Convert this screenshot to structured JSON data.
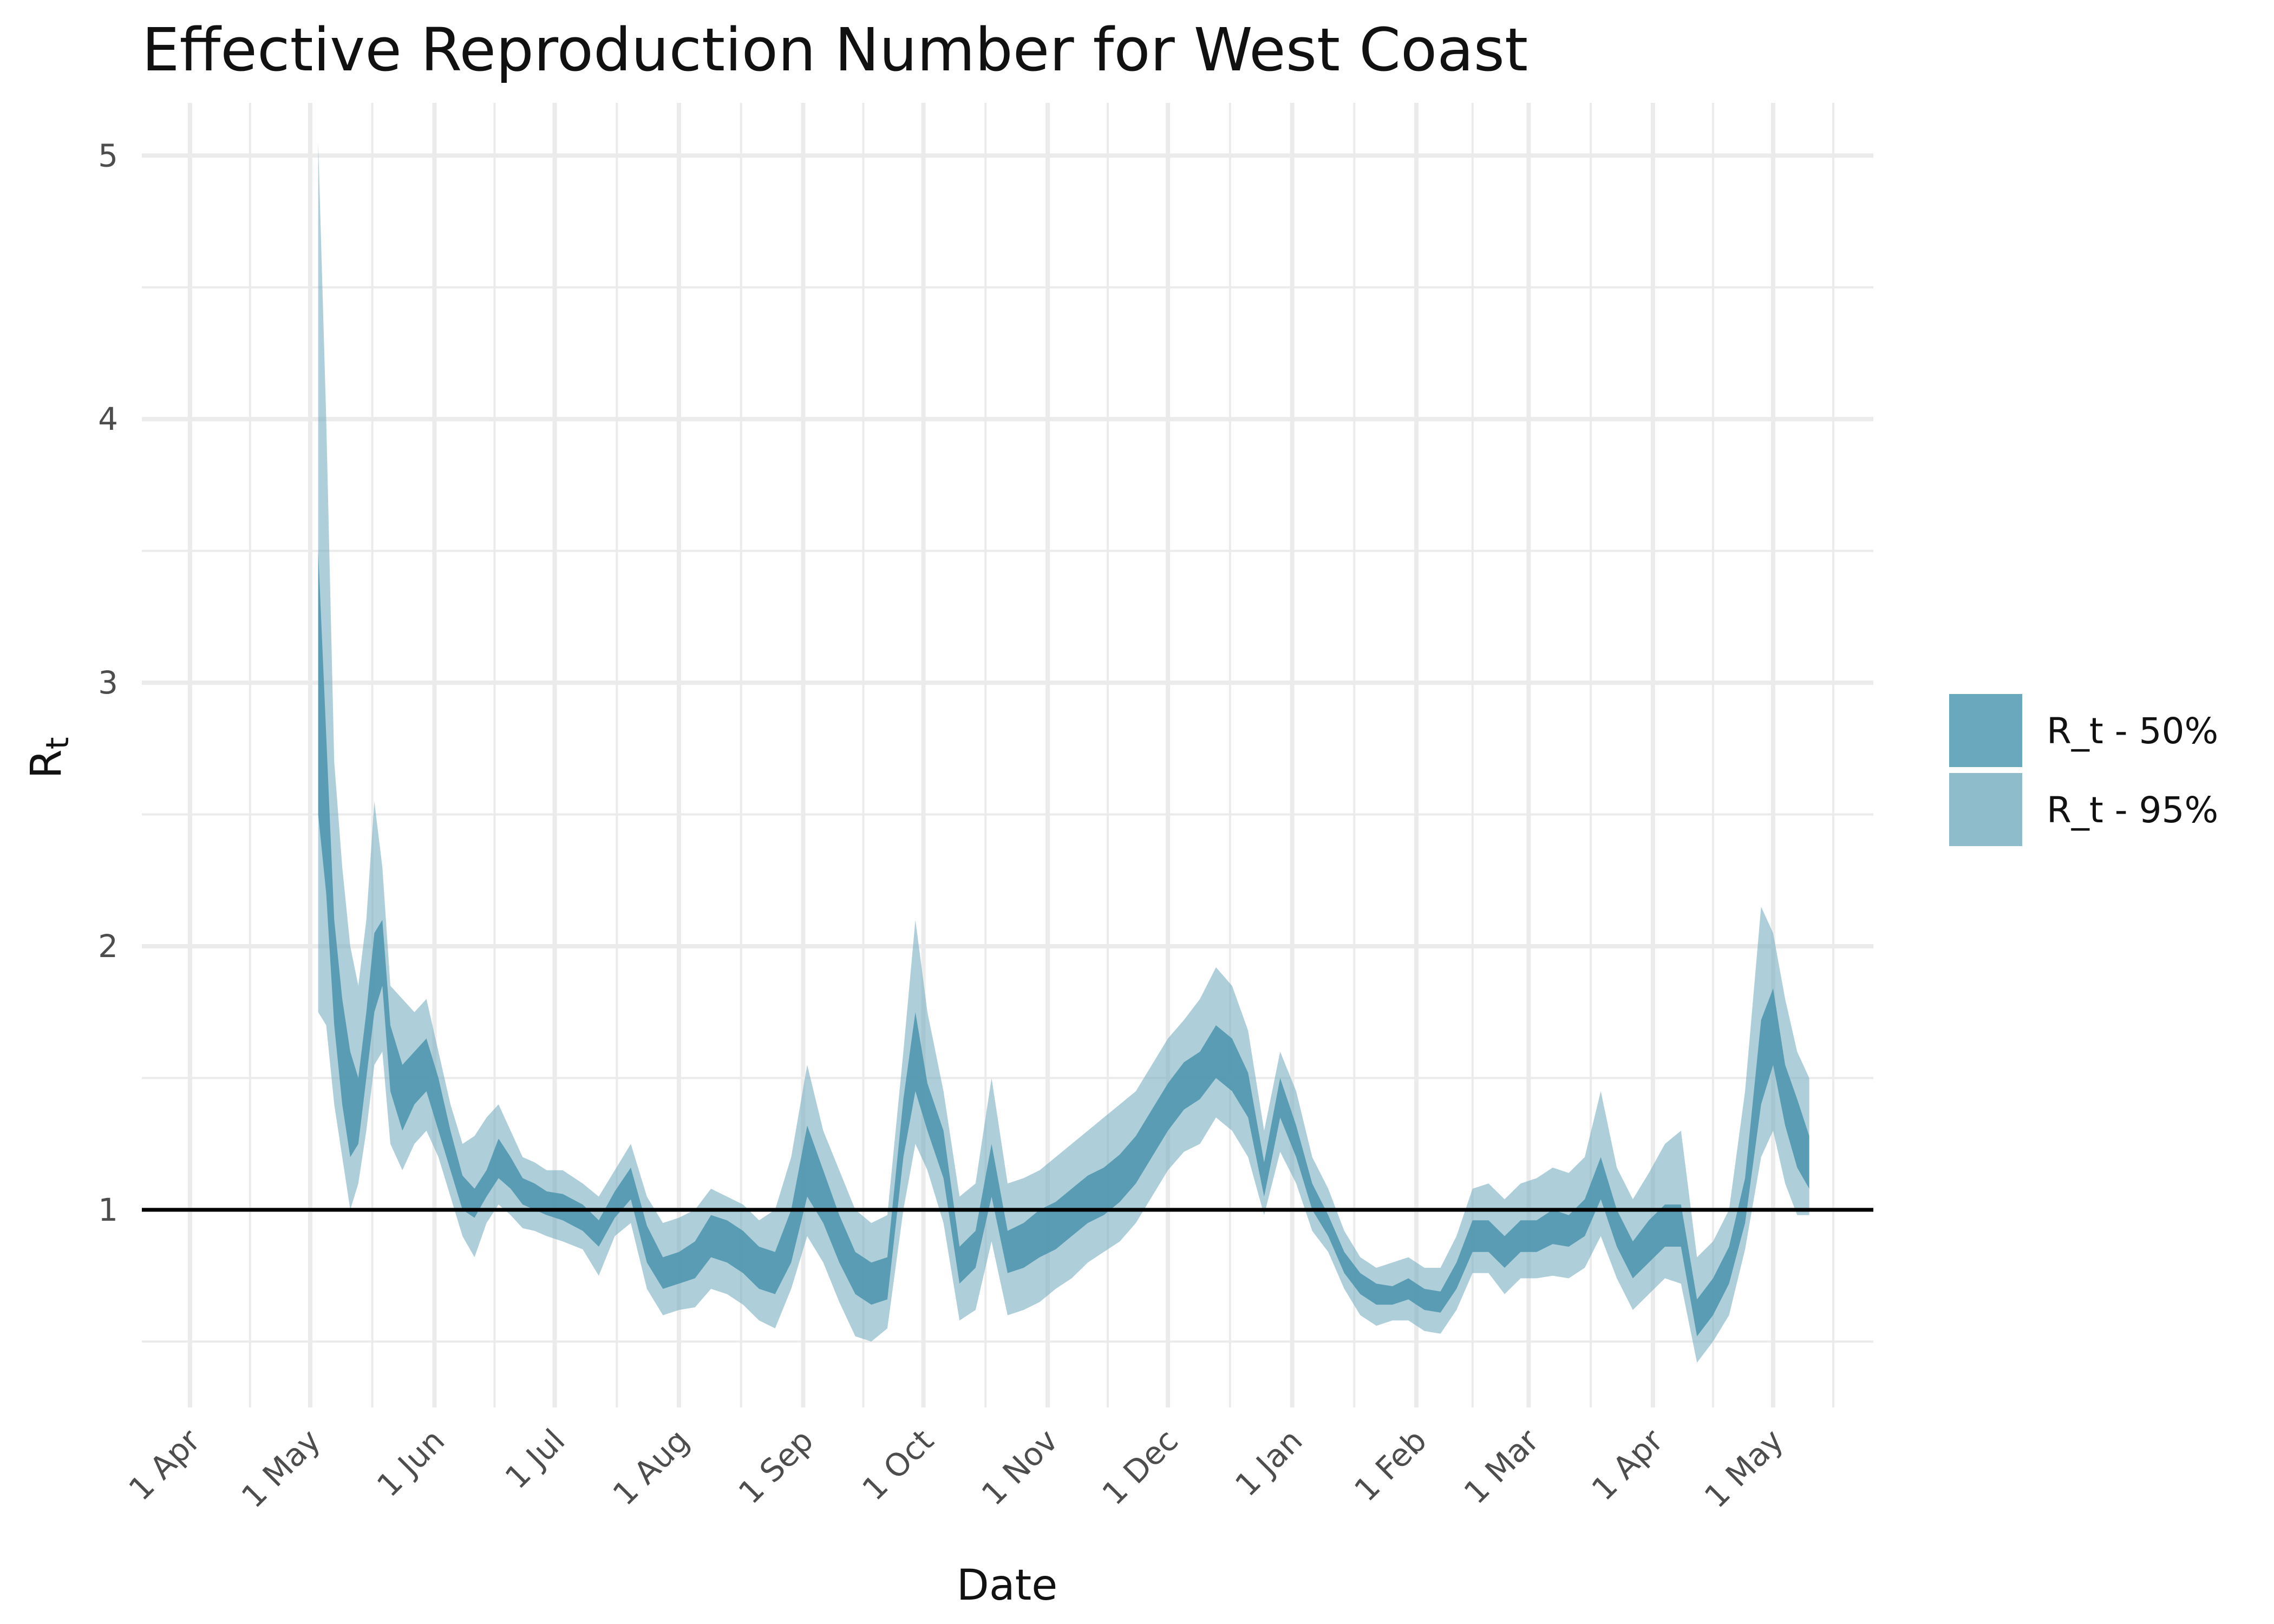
{
  "chart_data": {
    "type": "area",
    "title": "Effective Reproduction Number for West Coast",
    "xlabel": "Date",
    "ylabel": "R",
    "ylabel_subscript": "t",
    "x_range": [
      "2020-03-20",
      "2021-05-26"
    ],
    "ylim": [
      0.25,
      5.2
    ],
    "y_ticks": [
      1,
      2,
      3,
      4,
      5
    ],
    "x_tick_labels": [
      "1 Apr",
      "1 May",
      "1 Jun",
      "1 Jul",
      "1 Aug",
      "1 Sep",
      "1 Oct",
      "1 Nov",
      "1 Dec",
      "1 Jan",
      "1 Feb",
      "1 Mar",
      "1 Apr",
      "1 May"
    ],
    "x_tick_dates": [
      "2020-04-01",
      "2020-05-01",
      "2020-06-01",
      "2020-07-01",
      "2020-08-01",
      "2020-09-01",
      "2020-10-01",
      "2020-11-01",
      "2020-12-01",
      "2021-01-01",
      "2021-02-01",
      "2021-03-01",
      "2021-04-01",
      "2021-05-01"
    ],
    "reference_line": 1,
    "grid": true,
    "legend_position": "right",
    "colors": {
      "band50": "#4a93ad",
      "band95": "#7db2c4",
      "reference": "#000000",
      "grid": "#ebebeb"
    },
    "legend": [
      {
        "label": "R_t - 50%",
        "color": "#6aa8bd"
      },
      {
        "label": "R_t - 95%",
        "color": "#8fbccb"
      }
    ],
    "series": [
      {
        "name": "R_t - 50%",
        "x": [
          "2020-05-03",
          "2020-05-05",
          "2020-05-07",
          "2020-05-09",
          "2020-05-11",
          "2020-05-13",
          "2020-05-15",
          "2020-05-17",
          "2020-05-19",
          "2020-05-21",
          "2020-05-24",
          "2020-05-27",
          "2020-05-30",
          "2020-06-02",
          "2020-06-05",
          "2020-06-08",
          "2020-06-11",
          "2020-06-14",
          "2020-06-17",
          "2020-06-20",
          "2020-06-23",
          "2020-06-26",
          "2020-06-29",
          "2020-07-03",
          "2020-07-08",
          "2020-07-12",
          "2020-07-16",
          "2020-07-20",
          "2020-07-24",
          "2020-07-28",
          "2020-08-01",
          "2020-08-05",
          "2020-08-09",
          "2020-08-13",
          "2020-08-17",
          "2020-08-21",
          "2020-08-25",
          "2020-08-29",
          "2020-09-02",
          "2020-09-06",
          "2020-09-10",
          "2020-09-14",
          "2020-09-18",
          "2020-09-22",
          "2020-09-26",
          "2020-09-29",
          "2020-10-02",
          "2020-10-06",
          "2020-10-10",
          "2020-10-14",
          "2020-10-18",
          "2020-10-22",
          "2020-10-26",
          "2020-10-30",
          "2020-11-03",
          "2020-11-07",
          "2020-11-11",
          "2020-11-15",
          "2020-11-19",
          "2020-11-23",
          "2020-11-27",
          "2020-12-01",
          "2020-12-05",
          "2020-12-09",
          "2020-12-13",
          "2020-12-17",
          "2020-12-21",
          "2020-12-25",
          "2020-12-29",
          "2021-01-02",
          "2021-01-06",
          "2021-01-10",
          "2021-01-14",
          "2021-01-18",
          "2021-01-22",
          "2021-01-26",
          "2021-01-30",
          "2021-02-03",
          "2021-02-07",
          "2021-02-11",
          "2021-02-15",
          "2021-02-19",
          "2021-02-23",
          "2021-02-27",
          "2021-03-03",
          "2021-03-07",
          "2021-03-11",
          "2021-03-15",
          "2021-03-19",
          "2021-03-23",
          "2021-03-27",
          "2021-03-31",
          "2021-04-04",
          "2021-04-08",
          "2021-04-12",
          "2021-04-16",
          "2021-04-20",
          "2021-04-24",
          "2021-04-28",
          "2021-05-01",
          "2021-05-04",
          "2021-05-07",
          "2021-05-10"
        ],
        "lo": [
          2.5,
          2.2,
          1.7,
          1.4,
          1.2,
          1.25,
          1.5,
          1.75,
          1.85,
          1.45,
          1.3,
          1.4,
          1.45,
          1.3,
          1.15,
          1.0,
          0.97,
          1.05,
          1.12,
          1.08,
          1.02,
          1.0,
          0.98,
          0.96,
          0.92,
          0.86,
          0.97,
          1.04,
          0.8,
          0.7,
          0.72,
          0.74,
          0.82,
          0.8,
          0.76,
          0.7,
          0.68,
          0.8,
          1.05,
          0.95,
          0.8,
          0.68,
          0.64,
          0.66,
          1.2,
          1.45,
          1.3,
          1.12,
          0.72,
          0.78,
          1.05,
          0.76,
          0.78,
          0.82,
          0.85,
          0.9,
          0.95,
          0.98,
          1.03,
          1.1,
          1.2,
          1.3,
          1.38,
          1.42,
          1.5,
          1.45,
          1.35,
          1.05,
          1.35,
          1.2,
          1.0,
          0.9,
          0.76,
          0.68,
          0.64,
          0.64,
          0.66,
          0.62,
          0.61,
          0.7,
          0.84,
          0.84,
          0.78,
          0.84,
          0.84,
          0.87,
          0.86,
          0.9,
          1.04,
          0.86,
          0.74,
          0.8,
          0.86,
          0.86,
          0.52,
          0.6,
          0.72,
          0.95,
          1.4,
          1.55,
          1.32,
          1.16,
          1.08
        ],
        "hi": [
          3.5,
          2.8,
          2.1,
          1.8,
          1.6,
          1.5,
          1.75,
          2.05,
          2.1,
          1.7,
          1.55,
          1.6,
          1.65,
          1.5,
          1.3,
          1.13,
          1.08,
          1.15,
          1.27,
          1.2,
          1.12,
          1.1,
          1.07,
          1.06,
          1.02,
          0.96,
          1.07,
          1.16,
          0.94,
          0.82,
          0.84,
          0.88,
          0.98,
          0.96,
          0.92,
          0.86,
          0.84,
          1.0,
          1.32,
          1.15,
          0.98,
          0.84,
          0.8,
          0.82,
          1.42,
          1.75,
          1.48,
          1.3,
          0.86,
          0.92,
          1.25,
          0.92,
          0.95,
          1.0,
          1.03,
          1.08,
          1.13,
          1.16,
          1.21,
          1.28,
          1.38,
          1.48,
          1.56,
          1.6,
          1.7,
          1.65,
          1.52,
          1.18,
          1.5,
          1.32,
          1.1,
          0.98,
          0.84,
          0.76,
          0.72,
          0.71,
          0.74,
          0.7,
          0.69,
          0.8,
          0.96,
          0.96,
          0.9,
          0.96,
          0.96,
          1.0,
          0.98,
          1.04,
          1.2,
          1.0,
          0.88,
          0.96,
          1.02,
          1.02,
          0.66,
          0.74,
          0.86,
          1.12,
          1.72,
          1.84,
          1.55,
          1.42,
          1.28
        ]
      },
      {
        "name": "R_t - 95%",
        "x": [
          "2020-05-03",
          "2020-05-05",
          "2020-05-07",
          "2020-05-09",
          "2020-05-11",
          "2020-05-13",
          "2020-05-15",
          "2020-05-17",
          "2020-05-19",
          "2020-05-21",
          "2020-05-24",
          "2020-05-27",
          "2020-05-30",
          "2020-06-02",
          "2020-06-05",
          "2020-06-08",
          "2020-06-11",
          "2020-06-14",
          "2020-06-17",
          "2020-06-20",
          "2020-06-23",
          "2020-06-26",
          "2020-06-29",
          "2020-07-03",
          "2020-07-08",
          "2020-07-12",
          "2020-07-16",
          "2020-07-20",
          "2020-07-24",
          "2020-07-28",
          "2020-08-01",
          "2020-08-05",
          "2020-08-09",
          "2020-08-13",
          "2020-08-17",
          "2020-08-21",
          "2020-08-25",
          "2020-08-29",
          "2020-09-02",
          "2020-09-06",
          "2020-09-10",
          "2020-09-14",
          "2020-09-18",
          "2020-09-22",
          "2020-09-26",
          "2020-09-29",
          "2020-10-02",
          "2020-10-06",
          "2020-10-10",
          "2020-10-14",
          "2020-10-18",
          "2020-10-22",
          "2020-10-26",
          "2020-10-30",
          "2020-11-03",
          "2020-11-07",
          "2020-11-11",
          "2020-11-15",
          "2020-11-19",
          "2020-11-23",
          "2020-11-27",
          "2020-12-01",
          "2020-12-05",
          "2020-12-09",
          "2020-12-13",
          "2020-12-17",
          "2020-12-21",
          "2020-12-25",
          "2020-12-29",
          "2021-01-02",
          "2021-01-06",
          "2021-01-10",
          "2021-01-14",
          "2021-01-18",
          "2021-01-22",
          "2021-01-26",
          "2021-01-30",
          "2021-02-03",
          "2021-02-07",
          "2021-02-11",
          "2021-02-15",
          "2021-02-19",
          "2021-02-23",
          "2021-02-27",
          "2021-03-03",
          "2021-03-07",
          "2021-03-11",
          "2021-03-15",
          "2021-03-19",
          "2021-03-23",
          "2021-03-27",
          "2021-03-31",
          "2021-04-04",
          "2021-04-08",
          "2021-04-12",
          "2021-04-16",
          "2021-04-20",
          "2021-04-24",
          "2021-04-28",
          "2021-05-01",
          "2021-05-04",
          "2021-05-07",
          "2021-05-10"
        ],
        "lo": [
          1.75,
          1.7,
          1.4,
          1.2,
          1.0,
          1.1,
          1.3,
          1.55,
          1.6,
          1.25,
          1.15,
          1.25,
          1.3,
          1.2,
          1.05,
          0.9,
          0.82,
          0.95,
          1.02,
          0.98,
          0.93,
          0.92,
          0.9,
          0.88,
          0.85,
          0.75,
          0.9,
          0.95,
          0.7,
          0.6,
          0.62,
          0.63,
          0.7,
          0.68,
          0.64,
          0.58,
          0.55,
          0.7,
          0.9,
          0.8,
          0.65,
          0.52,
          0.5,
          0.55,
          1.0,
          1.25,
          1.15,
          0.95,
          0.58,
          0.62,
          0.88,
          0.6,
          0.62,
          0.65,
          0.7,
          0.74,
          0.8,
          0.84,
          0.88,
          0.95,
          1.05,
          1.15,
          1.22,
          1.25,
          1.35,
          1.3,
          1.2,
          0.98,
          1.22,
          1.1,
          0.92,
          0.84,
          0.7,
          0.6,
          0.56,
          0.58,
          0.58,
          0.54,
          0.53,
          0.62,
          0.76,
          0.76,
          0.68,
          0.74,
          0.74,
          0.75,
          0.74,
          0.78,
          0.9,
          0.74,
          0.62,
          0.68,
          0.74,
          0.72,
          0.42,
          0.5,
          0.6,
          0.85,
          1.2,
          1.3,
          1.1,
          0.98,
          0.98
        ],
        "hi": [
          5.05,
          4.0,
          2.7,
          2.3,
          2.0,
          1.85,
          2.1,
          2.55,
          2.3,
          1.85,
          1.8,
          1.75,
          1.8,
          1.6,
          1.4,
          1.25,
          1.28,
          1.35,
          1.4,
          1.3,
          1.2,
          1.18,
          1.15,
          1.15,
          1.1,
          1.05,
          1.15,
          1.25,
          1.05,
          0.95,
          0.97,
          1.0,
          1.08,
          1.05,
          1.02,
          0.96,
          1.0,
          1.2,
          1.55,
          1.3,
          1.15,
          1.0,
          0.95,
          0.98,
          1.6,
          2.1,
          1.75,
          1.45,
          1.05,
          1.1,
          1.5,
          1.1,
          1.12,
          1.15,
          1.2,
          1.25,
          1.3,
          1.35,
          1.4,
          1.45,
          1.55,
          1.65,
          1.72,
          1.8,
          1.92,
          1.85,
          1.68,
          1.3,
          1.6,
          1.45,
          1.2,
          1.08,
          0.92,
          0.82,
          0.78,
          0.8,
          0.82,
          0.78,
          0.78,
          0.9,
          1.08,
          1.1,
          1.04,
          1.1,
          1.12,
          1.16,
          1.14,
          1.2,
          1.45,
          1.16,
          1.04,
          1.14,
          1.25,
          1.3,
          0.82,
          0.88,
          1.0,
          1.45,
          2.15,
          2.05,
          1.8,
          1.6,
          1.5
        ]
      }
    ]
  }
}
